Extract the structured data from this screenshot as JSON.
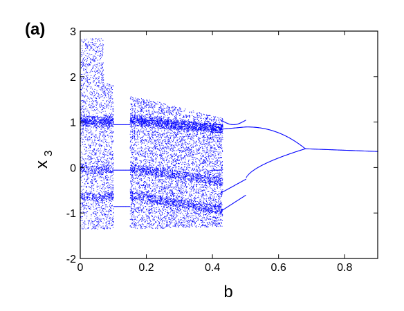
{
  "chart_data": {
    "type": "scatter",
    "panel_label": "(a)",
    "xlabel": "b",
    "ylabel_main": "x",
    "ylabel_sub": "3",
    "xlim": [
      0,
      0.9
    ],
    "ylim": [
      -2,
      3
    ],
    "x_ticks": [
      0,
      0.2,
      0.4,
      0.6,
      0.8
    ],
    "x_tick_labels": [
      "0",
      "0.2",
      "0.4",
      "0.6",
      "0.8"
    ],
    "y_ticks": [
      -2,
      -1,
      0,
      1,
      2,
      3
    ],
    "y_tick_labels": [
      "-2",
      "-1",
      "0",
      "1",
      "2",
      "3"
    ],
    "grid": false,
    "point_color": "#0000ff",
    "bifurcation": {
      "period4_to_period2_b": 0.5,
      "period2_to_period1_b": 0.68,
      "fixed_point_at_b_0_68": 0.42,
      "fixed_point_at_b_0_9": 0.36,
      "period2_upper_at_b_0_5": 0.9,
      "period2_lower_at_b_0_5": -0.25,
      "period4_upper_at_b_0_45": 1.0,
      "period4_lower_at_b_0_45": -0.8
    },
    "chaotic_bands": [
      {
        "b_range": [
          0.0,
          0.07
        ],
        "x_range": [
          -1.35,
          2.85
        ]
      },
      {
        "b_range": [
          0.07,
          0.1
        ],
        "x_range": [
          -1.35,
          1.85
        ]
      },
      {
        "b_range": [
          0.15,
          0.43
        ],
        "x_range": [
          -1.35,
          1.6
        ]
      }
    ],
    "periodic_windows_b": [
      [
        0.1,
        0.15
      ],
      [
        0.4,
        0.425
      ]
    ]
  }
}
